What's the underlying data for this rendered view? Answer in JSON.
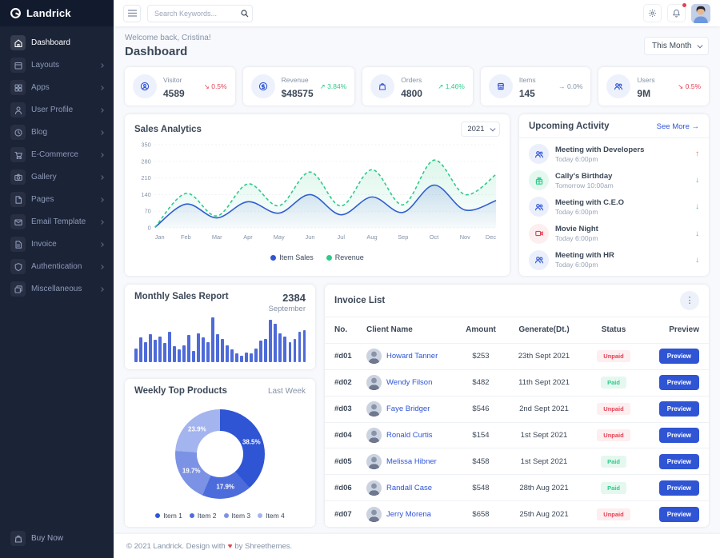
{
  "colors": {
    "primary": "#2f55d4",
    "success": "#2eca8b",
    "danger": "#e43f52",
    "warning_arrow": "#f0753c",
    "sidebar_bg": "#1b2337",
    "page_bg": "#f8f9fc",
    "muted": "#8492a6",
    "bar_blue": "#4e6bd8",
    "donut_palette": [
      "#2f55d4",
      "#4d6cdc",
      "#7b92e5",
      "#a3b4ee"
    ]
  },
  "sidebar": {
    "logo": "Landrick",
    "items": [
      {
        "label": "Dashboard",
        "icon": "home-icon",
        "active": true,
        "has_children": false
      },
      {
        "label": "Layouts",
        "icon": "layout-icon",
        "active": false,
        "has_children": true
      },
      {
        "label": "Apps",
        "icon": "apps-icon",
        "active": false,
        "has_children": true
      },
      {
        "label": "User Profile",
        "icon": "user-icon",
        "active": false,
        "has_children": true
      },
      {
        "label": "Blog",
        "icon": "clock-icon",
        "active": false,
        "has_children": true
      },
      {
        "label": "E-Commerce",
        "icon": "cart-icon",
        "active": false,
        "has_children": true
      },
      {
        "label": "Gallery",
        "icon": "camera-icon",
        "active": false,
        "has_children": true
      },
      {
        "label": "Pages",
        "icon": "file-icon",
        "active": false,
        "has_children": true
      },
      {
        "label": "Email Template",
        "icon": "mail-icon",
        "active": false,
        "has_children": true
      },
      {
        "label": "Invoice",
        "icon": "file-text-icon",
        "active": false,
        "has_children": true
      },
      {
        "label": "Authentication",
        "icon": "shield-icon",
        "active": false,
        "has_children": true
      },
      {
        "label": "Miscellaneous",
        "icon": "layers-icon",
        "active": false,
        "has_children": true
      }
    ],
    "buy_now": "Buy Now"
  },
  "topbar": {
    "search_placeholder": "Search Keywords..."
  },
  "header": {
    "welcome": "Welcome back, Cristina!",
    "title": "Dashboard",
    "period": "This Month"
  },
  "stats": [
    {
      "label": "Visitor",
      "value": "4589",
      "delta": "0.5%",
      "trend": "down",
      "icon": "user-circle-icon"
    },
    {
      "label": "Revenue",
      "value": "$48575",
      "delta": "3.84%",
      "trend": "up",
      "icon": "dollar-circle-icon"
    },
    {
      "label": "Orders",
      "value": "4800",
      "delta": "1.46%",
      "trend": "up",
      "icon": "bag-icon"
    },
    {
      "label": "Items",
      "value": "145",
      "delta": "0.0%",
      "trend": "flat",
      "icon": "store-icon"
    },
    {
      "label": "Users",
      "value": "9M",
      "delta": "0.5%",
      "trend": "down",
      "icon": "users-icon"
    }
  ],
  "sales": {
    "title": "Sales Analytics",
    "year": "2021"
  },
  "activity": {
    "title": "Upcoming Activity",
    "see_more": "See More",
    "see_more_arrow": "→",
    "items": [
      {
        "title": "Meeting with Developers",
        "time": "Today 6:00pm",
        "icon": "users-icon",
        "theme": "blue",
        "direction": "up"
      },
      {
        "title": "Cally's Birthday",
        "time": "Tomorrow 10:00am",
        "icon": "gift-icon",
        "theme": "green",
        "direction": "down"
      },
      {
        "title": "Meeting with C.E.O",
        "time": "Today 6:00pm",
        "icon": "users-icon",
        "theme": "blue",
        "direction": "down"
      },
      {
        "title": "Movie Night",
        "time": "Today 6:00pm",
        "icon": "video-icon",
        "theme": "red",
        "direction": "down"
      },
      {
        "title": "Meeting with HR",
        "time": "Today 6:00pm",
        "icon": "users-icon",
        "theme": "blue",
        "direction": "down"
      }
    ]
  },
  "monthly": {
    "title": "Monthly Sales Report",
    "value": "2384",
    "month": "September"
  },
  "weekly": {
    "title": "Weekly Top Products",
    "period": "Last Week"
  },
  "invoice": {
    "title": "Invoice List",
    "columns": [
      "No.",
      "Client Name",
      "Amount",
      "Generate(Dt.)",
      "Status",
      "Preview"
    ],
    "preview_label": "Preview",
    "rows": [
      {
        "no": "#d01",
        "client": "Howard Tanner",
        "amount": "$253",
        "date": "23th Sept 2021",
        "status": "Unpaid"
      },
      {
        "no": "#d02",
        "client": "Wendy Filson",
        "amount": "$482",
        "date": "11th Sept 2021",
        "status": "Paid"
      },
      {
        "no": "#d03",
        "client": "Faye Bridger",
        "amount": "$546",
        "date": "2nd Sept 2021",
        "status": "Unpaid"
      },
      {
        "no": "#d04",
        "client": "Ronald Curtis",
        "amount": "$154",
        "date": "1st Sept 2021",
        "status": "Unpaid"
      },
      {
        "no": "#d05",
        "client": "Melissa Hibner",
        "amount": "$458",
        "date": "1st Sept 2021",
        "status": "Paid"
      },
      {
        "no": "#d06",
        "client": "Randall Case",
        "amount": "$548",
        "date": "28th Aug 2021",
        "status": "Paid"
      },
      {
        "no": "#d07",
        "client": "Jerry Morena",
        "amount": "$658",
        "date": "25th Aug 2021",
        "status": "Unpaid"
      }
    ]
  },
  "footer": {
    "text_before": "© 2021 Landrick. Design with",
    "heart": "♥",
    "text_after": "by Shreethemes."
  },
  "chart_data": [
    {
      "id": "sales_analytics",
      "type": "line",
      "title": "Sales Analytics",
      "x": [
        "Jan",
        "Feb",
        "Mar",
        "Apr",
        "May",
        "Jun",
        "Jul",
        "Aug",
        "Sep",
        "Oct",
        "Nov",
        "Dec"
      ],
      "series": [
        {
          "name": "Item Sales",
          "color": "#2f55d4",
          "style": "solid",
          "values": [
            2,
            100,
            42,
            110,
            62,
            140,
            55,
            130,
            65,
            180,
            75,
            115
          ]
        },
        {
          "name": "Revenue",
          "color": "#2eca8b",
          "style": "dashed",
          "values": [
            2,
            145,
            50,
            185,
            93,
            235,
            92,
            245,
            97,
            285,
            140,
            225
          ]
        }
      ],
      "ylim": [
        0,
        350
      ],
      "yticks": [
        0,
        70,
        140,
        210,
        280,
        350
      ],
      "grid": true,
      "legend_position": "bottom"
    },
    {
      "id": "monthly_sales",
      "type": "bar",
      "title": "Monthly Sales Report",
      "values": [
        30,
        55,
        45,
        62,
        50,
        58,
        42,
        68,
        35,
        28,
        38,
        60,
        25,
        65,
        55,
        45,
        100,
        62,
        52,
        38,
        28,
        20,
        15,
        22,
        20,
        30,
        48,
        52,
        95,
        85,
        65,
        58,
        45,
        52,
        68,
        72
      ],
      "ylim": [
        0,
        100
      ],
      "color": "#4e6bd8"
    },
    {
      "id": "weekly_top_products",
      "type": "pie",
      "title": "Weekly Top Products",
      "labels": [
        "Item 1",
        "Item 2",
        "Item 3",
        "Item 4"
      ],
      "values": [
        38.5,
        17.9,
        19.7,
        23.9
      ],
      "colors": [
        "#2f55d4",
        "#4d6cdc",
        "#7b92e5",
        "#a3b4ee"
      ],
      "start_angle": "top",
      "direction": "clockwise",
      "donut": true,
      "legend_position": "bottom"
    }
  ]
}
